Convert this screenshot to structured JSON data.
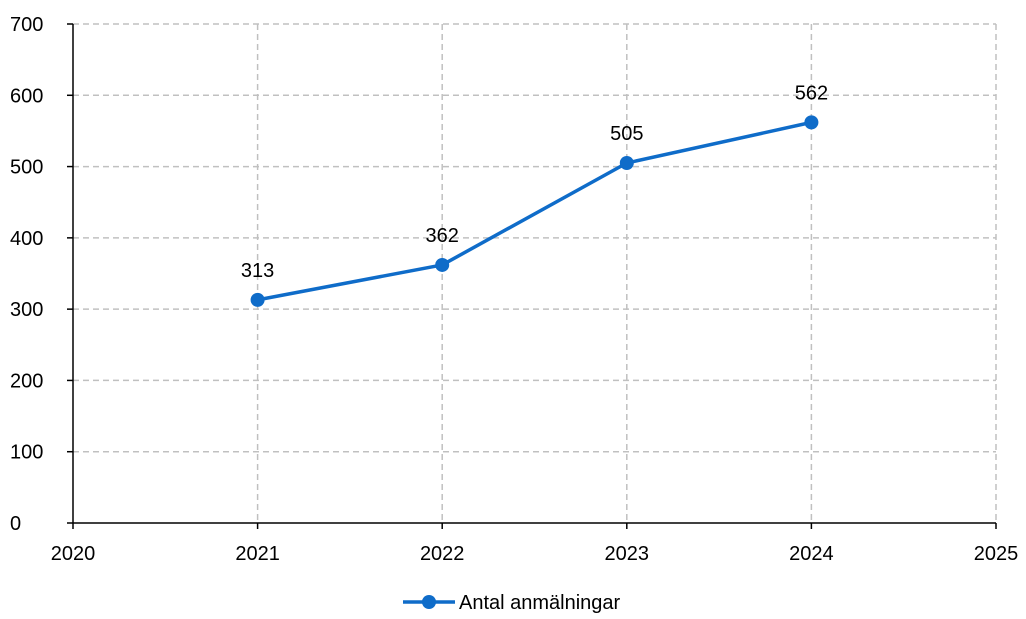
{
  "chart_data": {
    "type": "line",
    "title": "",
    "xlabel": "",
    "ylabel": "",
    "xlim": [
      2020,
      2025
    ],
    "ylim": [
      0,
      700
    ],
    "x_ticks": [
      "2020",
      "2021",
      "2022",
      "2023",
      "2024",
      "2025"
    ],
    "y_ticks": [
      "0",
      "100",
      "200",
      "300",
      "400",
      "500",
      "600",
      "700"
    ],
    "grid": true,
    "legend_position": "bottom-center",
    "series": [
      {
        "name": "Antal anmälningar",
        "color": "#0f6cc9",
        "x": [
          2021,
          2022,
          2023,
          2024
        ],
        "values": [
          313,
          362,
          505,
          562
        ],
        "labels": [
          "313",
          "362",
          "505",
          "562"
        ]
      }
    ]
  }
}
